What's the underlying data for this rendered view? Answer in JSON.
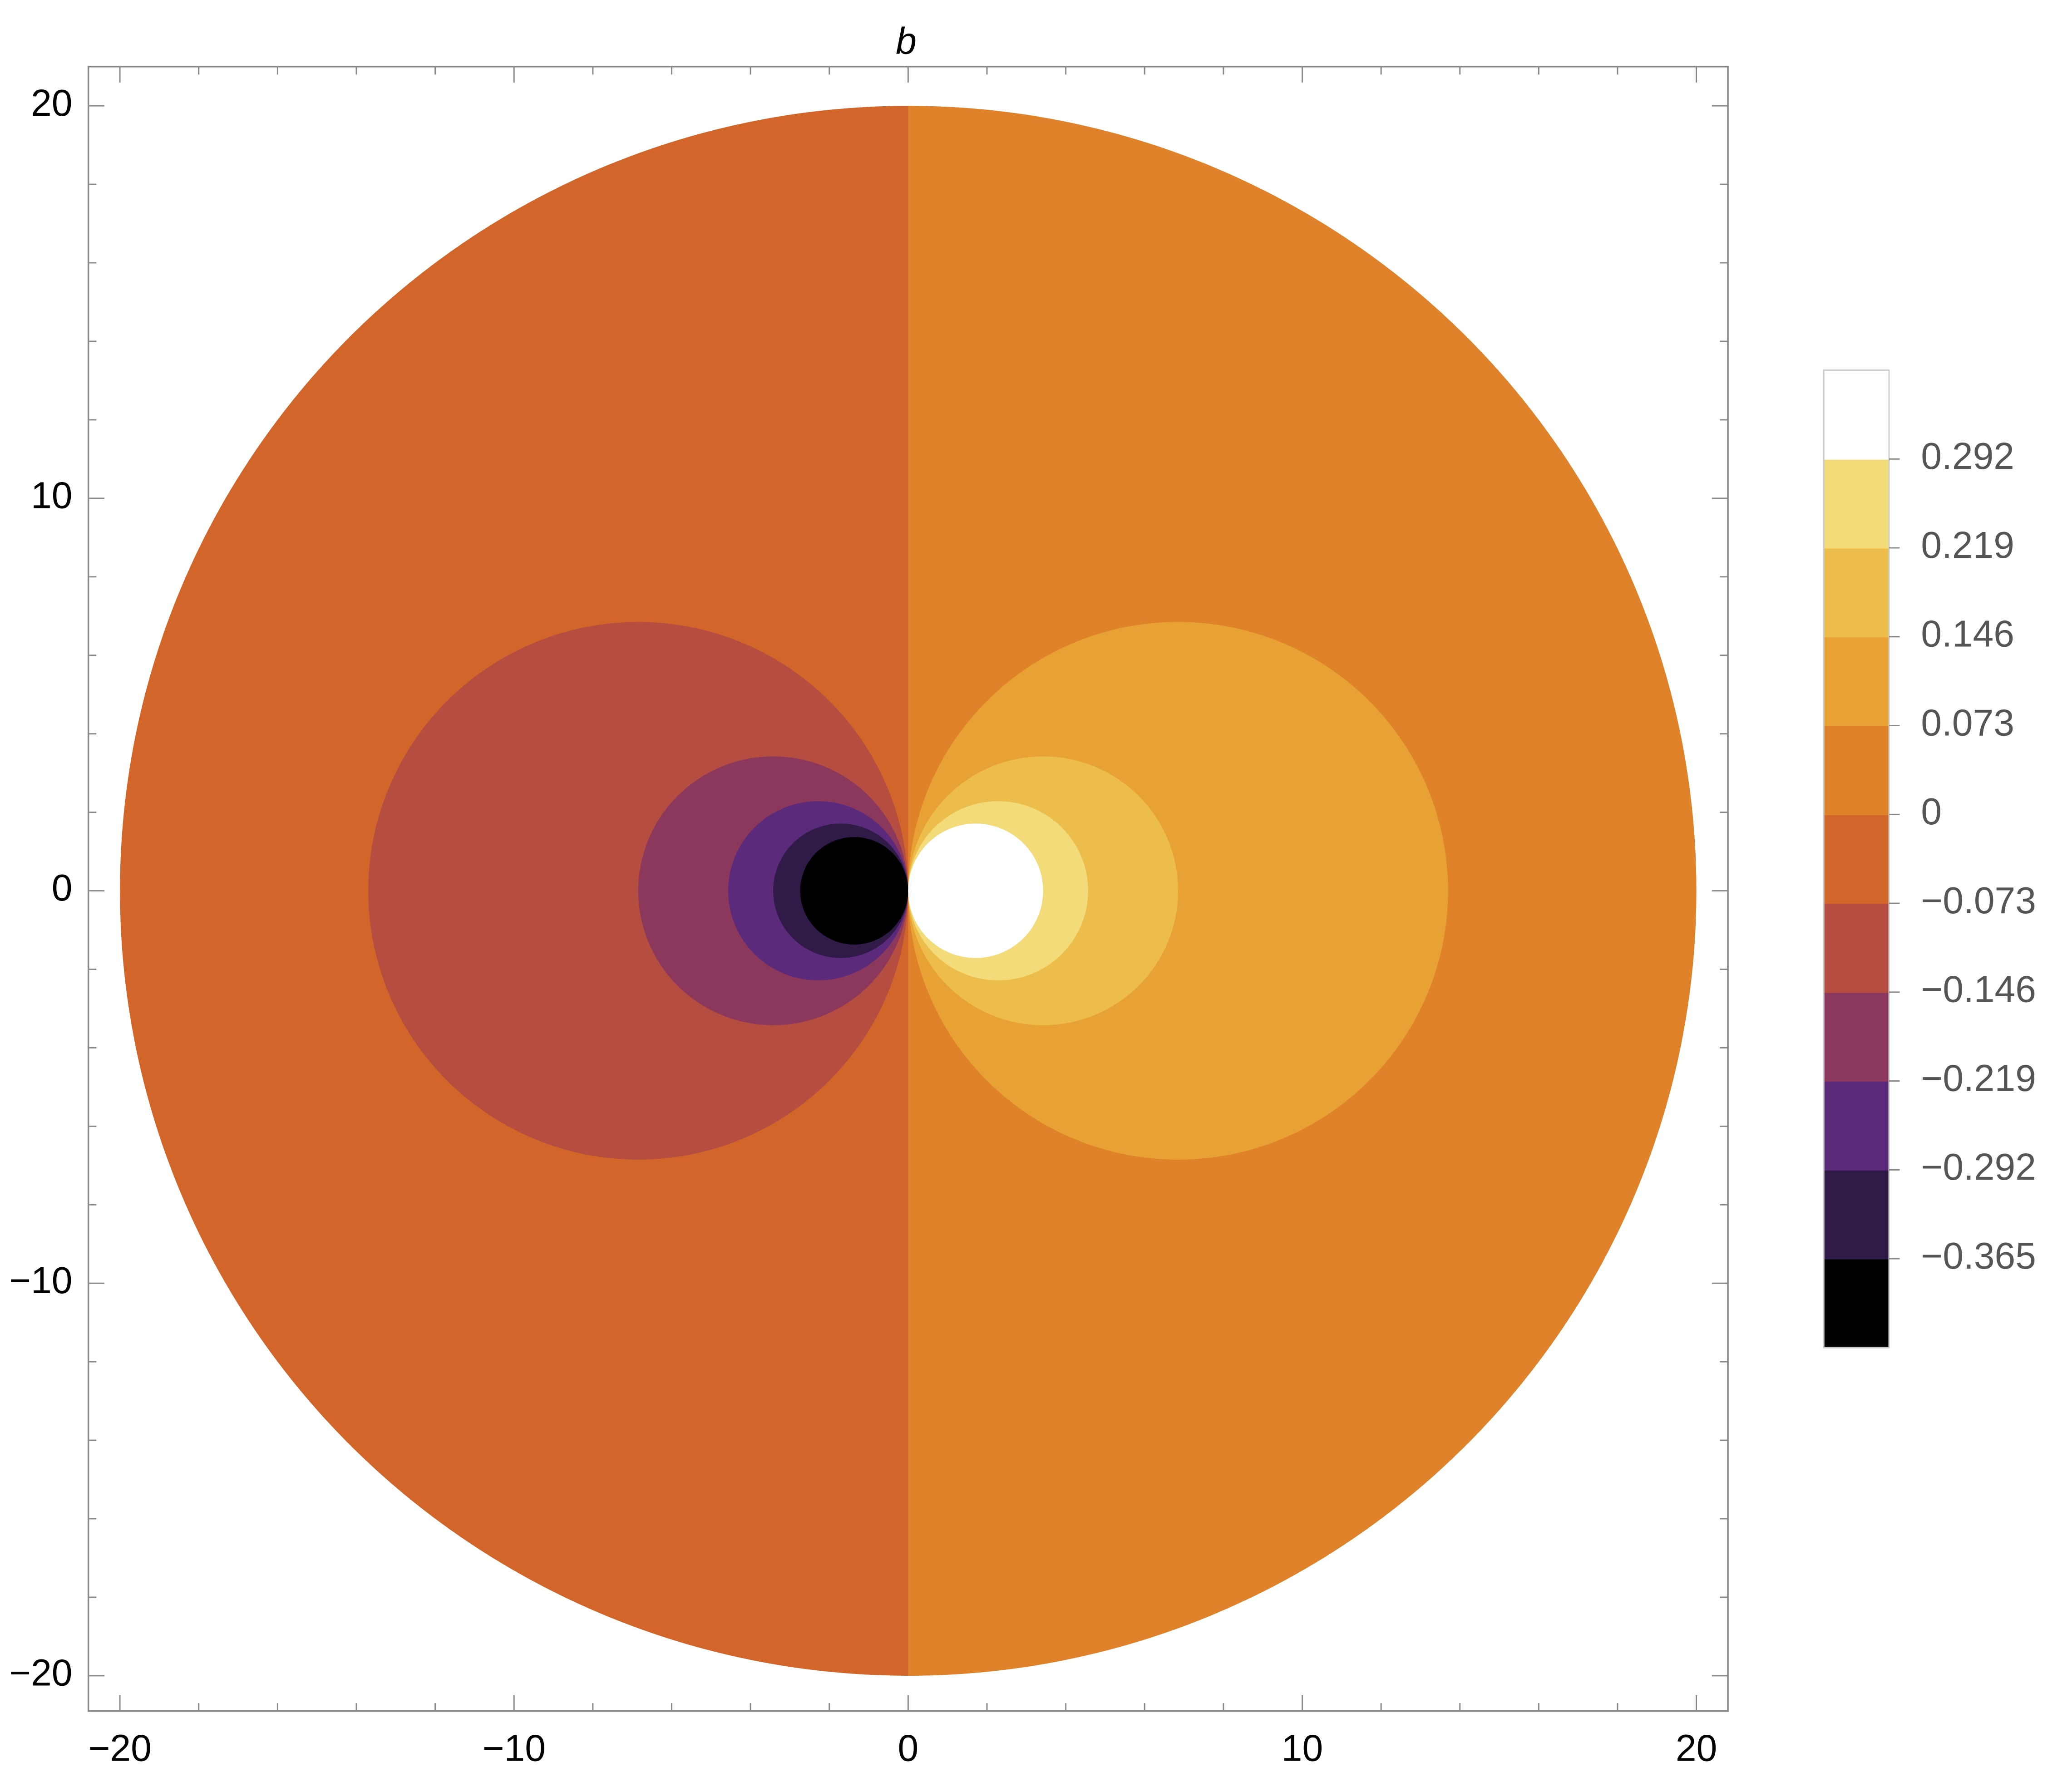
{
  "chart_data": {
    "type": "contour",
    "title": "b",
    "xlim": [
      -20.8,
      20.8
    ],
    "ylim": [
      -20.9,
      21
    ],
    "radius": 20,
    "xticks": [
      {
        "value": -20,
        "label": "−20"
      },
      {
        "value": -10,
        "label": "−10"
      },
      0,
      10,
      20
    ],
    "yticks": [
      {
        "value": -20,
        "label": "−20"
      },
      {
        "value": -10,
        "label": "−10"
      },
      0,
      10,
      20
    ],
    "xminorticks": [
      -18,
      -16,
      -14,
      -12,
      -8,
      -6,
      -4,
      -2,
      2,
      4,
      6,
      8,
      12,
      14,
      16,
      18
    ],
    "yminorticks": [
      -18,
      -16,
      -14,
      -12,
      -8,
      -6,
      -4,
      -2,
      2,
      4,
      6,
      8,
      12,
      14,
      16,
      18
    ],
    "levels": [
      {
        "value": -0.365,
        "label": "−0.365"
      },
      {
        "value": -0.292,
        "label": "−0.292"
      },
      {
        "value": -0.219,
        "label": "−0.219"
      },
      {
        "value": -0.146,
        "label": "−0.146"
      },
      {
        "value": -0.073,
        "label": "−0.073"
      },
      0,
      0.073,
      0.146,
      0.219,
      0.292
    ],
    "colors": [
      "#000000",
      "#2f1a48",
      "#5c2a7a",
      "#8b385c",
      "#b54e40",
      "#d2662a",
      "#e0822a",
      "#e8a233",
      "#ecbd4a",
      "#f4db7a",
      "#ffffff"
    ]
  }
}
